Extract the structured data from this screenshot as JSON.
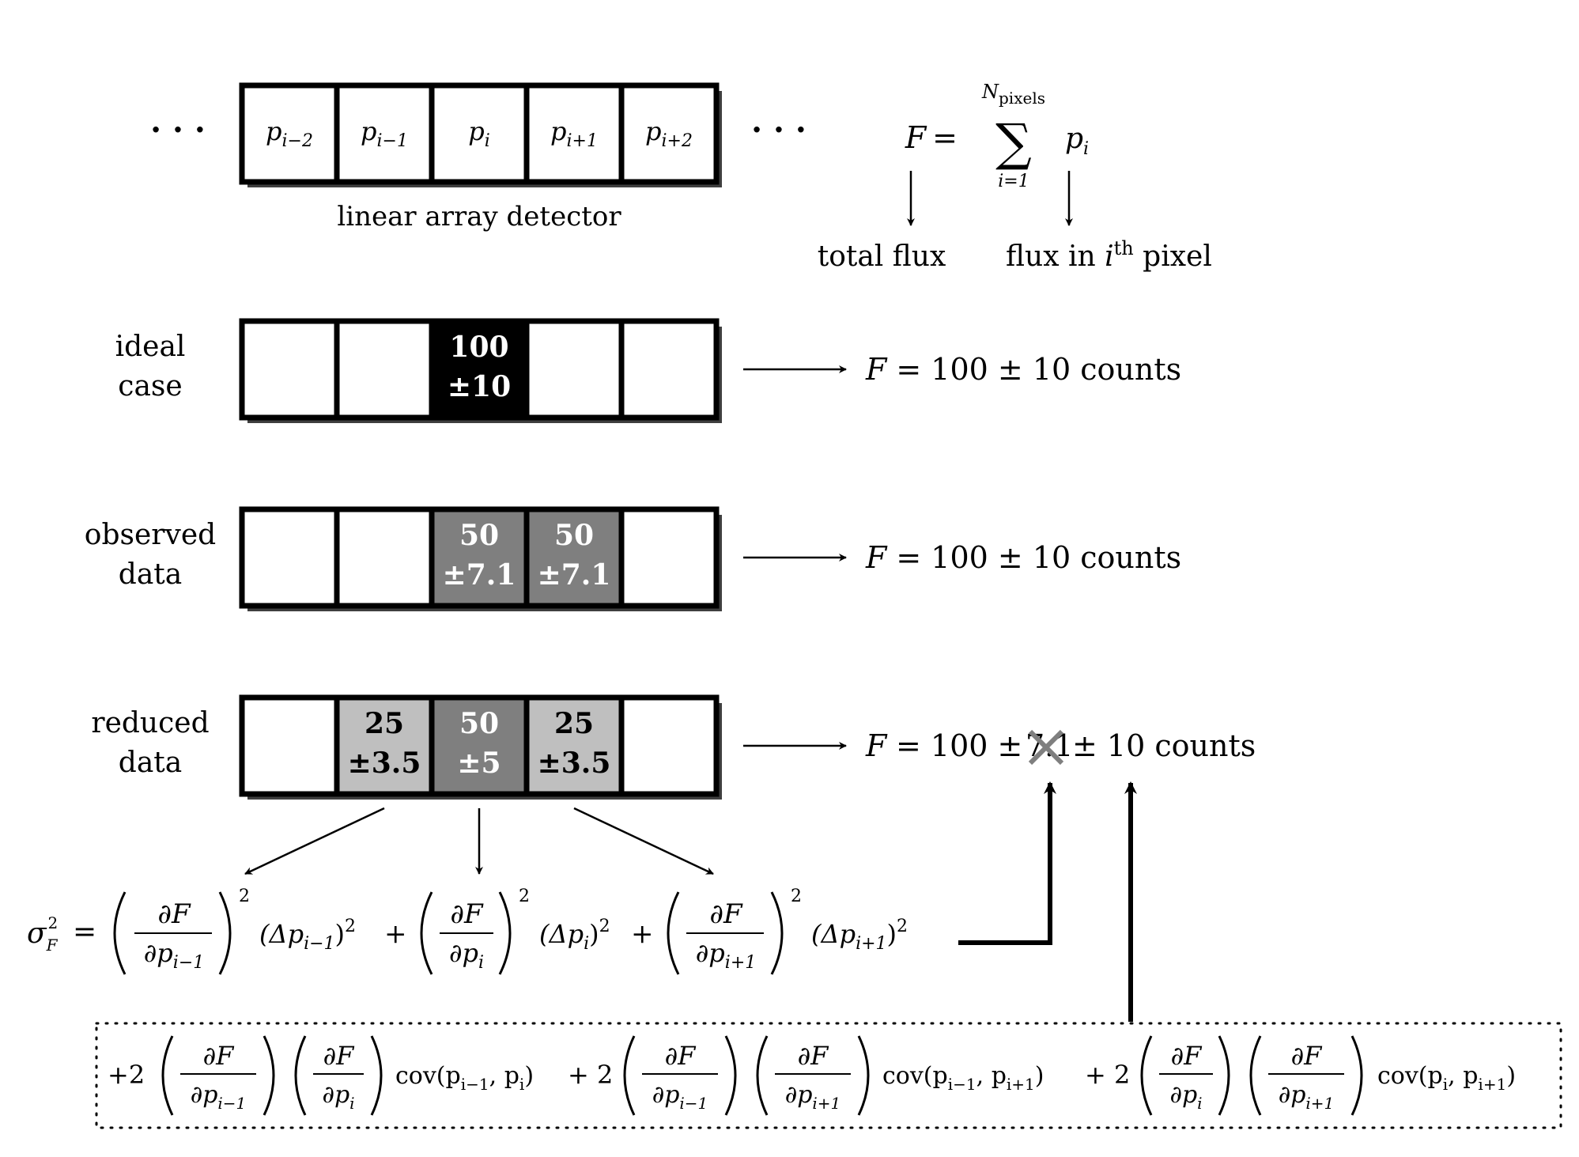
{
  "diagram": {
    "detector": {
      "cells": [
        "p",
        "p",
        "p",
        "p",
        "p"
      ],
      "subscripts": [
        "i−2",
        "i−1",
        "i",
        "i+1",
        "i+2"
      ],
      "ellipsis": "· · ·",
      "caption": "linear array detector"
    },
    "formula": {
      "lhs": "F",
      "equals": "=",
      "sum": "∑",
      "upper": "N",
      "upper_sub": "pixels",
      "lower": "i=1",
      "term": "p",
      "term_sub": "i",
      "label_total": "total flux",
      "label_pixel_pre": "flux in ",
      "label_pixel_i": "i",
      "label_pixel_th": "th",
      "label_pixel_post": " pixel"
    },
    "rows": [
      {
        "label_lines": [
          "ideal",
          "case"
        ],
        "cells": [
          {
            "top": "",
            "bottom": "",
            "fill": "#ffffff",
            "text_color": "#000000"
          },
          {
            "top": "",
            "bottom": "",
            "fill": "#ffffff",
            "text_color": "#000000"
          },
          {
            "top": "100",
            "bottom": "±10",
            "fill": "#000000",
            "text_color": "#ffffff"
          },
          {
            "top": "",
            "bottom": "",
            "fill": "#ffffff",
            "text_color": "#000000"
          },
          {
            "top": "",
            "bottom": "",
            "fill": "#ffffff",
            "text_color": "#000000"
          }
        ],
        "result_lhs": "F",
        "result_rhs": "= 100 ± 10 counts"
      },
      {
        "label_lines": [
          "observed",
          "data"
        ],
        "cells": [
          {
            "top": "",
            "bottom": "",
            "fill": "#ffffff",
            "text_color": "#000000"
          },
          {
            "top": "",
            "bottom": "",
            "fill": "#ffffff",
            "text_color": "#000000"
          },
          {
            "top": "50",
            "bottom": "±7.1",
            "fill": "#7f7f7f",
            "text_color": "#ffffff"
          },
          {
            "top": "50",
            "bottom": "±7.1",
            "fill": "#7f7f7f",
            "text_color": "#ffffff"
          },
          {
            "top": "",
            "bottom": "",
            "fill": "#ffffff",
            "text_color": "#000000"
          }
        ],
        "result_lhs": "F",
        "result_rhs": "= 100 ± 10 counts"
      },
      {
        "label_lines": [
          "reduced",
          "data"
        ],
        "cells": [
          {
            "top": "",
            "bottom": "",
            "fill": "#ffffff",
            "text_color": "#000000"
          },
          {
            "top": "25",
            "bottom": "±3.5",
            "fill": "#bfbfbf",
            "text_color": "#000000"
          },
          {
            "top": "50",
            "bottom": "±5",
            "fill": "#7f7f7f",
            "text_color": "#ffffff"
          },
          {
            "top": "25",
            "bottom": "±3.5",
            "fill": "#bfbfbf",
            "text_color": "#000000"
          },
          {
            "top": "",
            "bottom": "",
            "fill": "#ffffff",
            "text_color": "#000000"
          }
        ],
        "result_lhs": "F",
        "result_rhs_a": "= 100 ±",
        "result_crossed": "7.1",
        "result_rhs_b": "± 10 counts"
      }
    ],
    "variance": {
      "lhs": "σ",
      "lhs_sub": "F",
      "lhs_sup": "2",
      "equals": "=",
      "partial": "∂F",
      "den_1": "∂p",
      "den_1_sub": "i−1",
      "den_2": "∂p",
      "den_2_sub": "i",
      "den_3": "∂p",
      "den_3_sub": "i+1",
      "square": "2",
      "term_1": "(Δp",
      "term_1_sub": "i−1",
      "term_2": "(Δp",
      "term_2_sub": "i",
      "term_3": "(Δp",
      "term_3_sub": "i+1",
      "close": ")",
      "plus": "+"
    },
    "covariance": {
      "coef": "+2",
      "plus2": "+ 2",
      "partial": "∂F",
      "dp": "∂p",
      "sub_im1": "i−1",
      "sub_i": "i",
      "sub_ip1": "i+1",
      "cov": "cov(p",
      "comma_p": ", p",
      "close": ")"
    },
    "colors": {
      "ink": "#000000",
      "shadow": "#3f3f3f",
      "dark_gray": "#7f7f7f",
      "light_gray": "#bfbfbf",
      "cross": "#7f7f7f"
    }
  }
}
